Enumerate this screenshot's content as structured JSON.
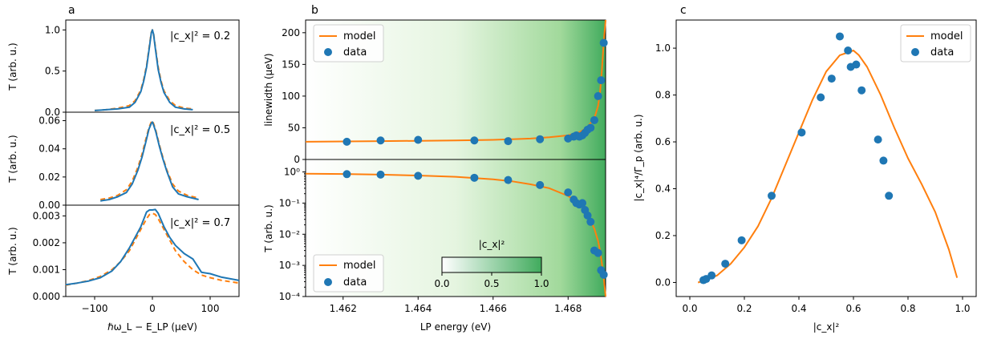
{
  "colors": {
    "model": "#ff7f0e",
    "data": "#1f77b4",
    "axis": "#000000",
    "green_light": "#f7fcf5",
    "green_dark": "#41ab5d"
  },
  "panel_labels": {
    "a": "a",
    "b": "b",
    "c": "c"
  },
  "panel_a": {
    "type": "line",
    "xlabel": "ℏω_L − E_LP (μeV)",
    "ylabel": "T (arb. u.)",
    "xlim": [
      -150,
      150
    ],
    "xticks": [
      "−100",
      "0",
      "100"
    ],
    "legend_entries": [
      "model",
      "data"
    ],
    "subplots": [
      {
        "annotation": "|c_x|² = 0.2",
        "ylim": [
          0,
          1.12
        ],
        "yticks": [
          "0.0",
          "0.5",
          "1.0"
        ],
        "data_x": [
          -100,
          -80,
          -60,
          -40,
          -30,
          -20,
          -15,
          -10,
          -5,
          -2,
          0,
          2,
          5,
          10,
          15,
          20,
          30,
          40,
          55,
          70
        ],
        "data_y": [
          0.02,
          0.03,
          0.04,
          0.06,
          0.12,
          0.25,
          0.38,
          0.55,
          0.8,
          0.96,
          1.0,
          0.95,
          0.78,
          0.52,
          0.36,
          0.24,
          0.12,
          0.06,
          0.04,
          0.03
        ],
        "model_x": [
          -100,
          -80,
          -60,
          -40,
          -30,
          -20,
          -15,
          -10,
          -5,
          -2,
          0,
          2,
          5,
          10,
          15,
          20,
          30,
          40,
          55,
          70
        ],
        "model_y": [
          0.02,
          0.03,
          0.05,
          0.08,
          0.14,
          0.27,
          0.4,
          0.57,
          0.82,
          0.97,
          1.0,
          0.96,
          0.8,
          0.55,
          0.38,
          0.26,
          0.14,
          0.08,
          0.05,
          0.04
        ]
      },
      {
        "annotation": "|c_x|² = 0.5",
        "ylim": [
          0,
          0.066
        ],
        "yticks": [
          "0.00",
          "0.02",
          "0.04",
          "0.06"
        ],
        "data_x": [
          -90,
          -75,
          -60,
          -45,
          -35,
          -25,
          -18,
          -12,
          -6,
          -2,
          0,
          2,
          6,
          12,
          18,
          25,
          35,
          45,
          60,
          80
        ],
        "data_y": [
          0.003,
          0.004,
          0.006,
          0.009,
          0.015,
          0.025,
          0.034,
          0.044,
          0.054,
          0.058,
          0.059,
          0.057,
          0.052,
          0.042,
          0.033,
          0.024,
          0.013,
          0.008,
          0.006,
          0.004
        ],
        "model_x": [
          -90,
          -75,
          -60,
          -45,
          -35,
          -25,
          -18,
          -12,
          -6,
          -2,
          0,
          2,
          6,
          12,
          18,
          25,
          35,
          45,
          60,
          80
        ],
        "model_y": [
          0.004,
          0.005,
          0.007,
          0.011,
          0.017,
          0.027,
          0.036,
          0.046,
          0.055,
          0.059,
          0.06,
          0.058,
          0.053,
          0.043,
          0.034,
          0.025,
          0.015,
          0.01,
          0.007,
          0.005
        ]
      },
      {
        "annotation": "|c_x|² = 0.7",
        "ylim": [
          0,
          0.0034
        ],
        "yticks": [
          "0.000",
          "0.001",
          "0.002",
          "0.003"
        ],
        "data_x": [
          -150,
          -130,
          -110,
          -90,
          -70,
          -55,
          -40,
          -30,
          -20,
          -10,
          -5,
          0,
          5,
          10,
          20,
          30,
          40,
          55,
          70,
          85,
          100,
          120,
          150
        ],
        "data_y": [
          0.00044,
          0.0005,
          0.00058,
          0.0007,
          0.00095,
          0.0013,
          0.0018,
          0.0022,
          0.0026,
          0.00315,
          0.00322,
          0.00322,
          0.00324,
          0.0031,
          0.0026,
          0.0022,
          0.0019,
          0.0016,
          0.0014,
          0.0009,
          0.00085,
          0.00072,
          0.0006
        ],
        "model_x": [
          -150,
          -130,
          -110,
          -90,
          -70,
          -55,
          -40,
          -30,
          -20,
          -10,
          -5,
          0,
          5,
          10,
          20,
          30,
          40,
          55,
          70,
          85,
          100,
          120,
          150
        ],
        "model_y": [
          0.00042,
          0.0005,
          0.0006,
          0.00075,
          0.001,
          0.0013,
          0.0017,
          0.0021,
          0.0025,
          0.0029,
          0.00305,
          0.0031,
          0.00305,
          0.0029,
          0.0025,
          0.0021,
          0.0017,
          0.0013,
          0.001,
          0.0008,
          0.0007,
          0.0006,
          0.0005
        ]
      }
    ]
  },
  "panel_b": {
    "type": "scatter",
    "xlabel": "LP energy (eV)",
    "xlim": [
      1.461,
      1.469
    ],
    "xticks": [
      "1.462",
      "1.464",
      "1.466",
      "1.468"
    ],
    "legend_entries": [
      "model",
      "data"
    ],
    "colorbar": {
      "label": "|c_x|²",
      "ticks": [
        "0.0",
        "0.5",
        "1.0"
      ]
    },
    "top": {
      "ylabel": "linewidth (μeV)",
      "ylim": [
        0,
        220
      ],
      "yticks": [
        "0",
        "50",
        "100",
        "150",
        "200"
      ],
      "data_x": [
        1.4621,
        1.463,
        1.464,
        1.4655,
        1.4664,
        1.46725,
        1.468,
        1.46815,
        1.46822,
        1.4683,
        1.46838,
        1.46845,
        1.46852,
        1.4686,
        1.4687,
        1.4688,
        1.46888,
        1.46895
      ],
      "data_y": [
        28,
        30,
        31,
        30,
        29,
        32,
        33,
        36,
        38,
        36,
        38,
        42,
        47,
        50,
        62,
        100,
        125,
        184
      ],
      "model_x": [
        1.461,
        1.462,
        1.463,
        1.464,
        1.465,
        1.466,
        1.4665,
        1.467,
        1.4675,
        1.468,
        1.4683,
        1.4685,
        1.4687,
        1.4688,
        1.46885,
        1.4689,
        1.46895,
        1.469
      ],
      "model_y": [
        28,
        28.5,
        29,
        29.5,
        30,
        31,
        32,
        33,
        35,
        38,
        43,
        50,
        65,
        85,
        105,
        140,
        185,
        220
      ]
    },
    "bottom": {
      "ylabel": "T (arb. u.)",
      "ylim_log10": [
        -4,
        0.4
      ],
      "yticks": [
        "10⁰",
        "10⁻¹",
        "10⁻²",
        "10⁻³",
        "10⁻⁴"
      ],
      "data_x": [
        1.4621,
        1.463,
        1.464,
        1.4655,
        1.4664,
        1.46725,
        1.468,
        1.46815,
        1.46822,
        1.4683,
        1.46838,
        1.46845,
        1.46852,
        1.4686,
        1.4687,
        1.4688,
        1.46888,
        1.46895
      ],
      "data_y": [
        0.85,
        0.82,
        0.75,
        0.65,
        0.55,
        0.38,
        0.22,
        0.13,
        0.1,
        0.09,
        0.1,
        0.06,
        0.04,
        0.025,
        0.003,
        0.0025,
        0.0007,
        0.0005
      ],
      "model_x": [
        1.461,
        1.462,
        1.463,
        1.464,
        1.465,
        1.466,
        1.4665,
        1.467,
        1.4675,
        1.468,
        1.4683,
        1.4685,
        1.4687,
        1.4688,
        1.46885,
        1.4689,
        1.46895,
        1.469
      ],
      "model_y": [
        0.88,
        0.86,
        0.82,
        0.77,
        0.7,
        0.58,
        0.5,
        0.4,
        0.3,
        0.17,
        0.1,
        0.05,
        0.015,
        0.006,
        0.003,
        0.0012,
        0.0004,
        0.0001
      ]
    }
  },
  "panel_c": {
    "type": "scatter",
    "xlabel": "|c_x|²",
    "ylabel": "|c_x|⁴/Γ_p (arb. u.)",
    "xlim": [
      -0.05,
      1.05
    ],
    "ylim": [
      -0.06,
      1.12
    ],
    "xticks": [
      "0.0",
      "0.2",
      "0.4",
      "0.6",
      "0.8",
      "1.0"
    ],
    "yticks": [
      "0.0",
      "0.2",
      "0.4",
      "0.6",
      "0.8",
      "1.0"
    ],
    "legend_entries": [
      "model",
      "data"
    ],
    "data_x": [
      0.05,
      0.06,
      0.08,
      0.13,
      0.19,
      0.3,
      0.41,
      0.48,
      0.52,
      0.55,
      0.58,
      0.59,
      0.61,
      0.63,
      0.69,
      0.71,
      0.73
    ],
    "data_y": [
      0.01,
      0.015,
      0.03,
      0.08,
      0.18,
      0.37,
      0.64,
      0.79,
      0.87,
      1.05,
      0.99,
      0.92,
      0.93,
      0.82,
      0.61,
      0.52,
      0.37
    ],
    "model_x": [
      0.03,
      0.06,
      0.1,
      0.15,
      0.2,
      0.25,
      0.3,
      0.35,
      0.4,
      0.45,
      0.5,
      0.55,
      0.6,
      0.62,
      0.65,
      0.7,
      0.75,
      0.8,
      0.85,
      0.9,
      0.95,
      0.98
    ],
    "model_y": [
      0.0,
      0.01,
      0.03,
      0.08,
      0.15,
      0.24,
      0.36,
      0.5,
      0.64,
      0.78,
      0.9,
      0.97,
      0.99,
      0.97,
      0.92,
      0.8,
      0.66,
      0.53,
      0.42,
      0.3,
      0.14,
      0.02
    ]
  }
}
